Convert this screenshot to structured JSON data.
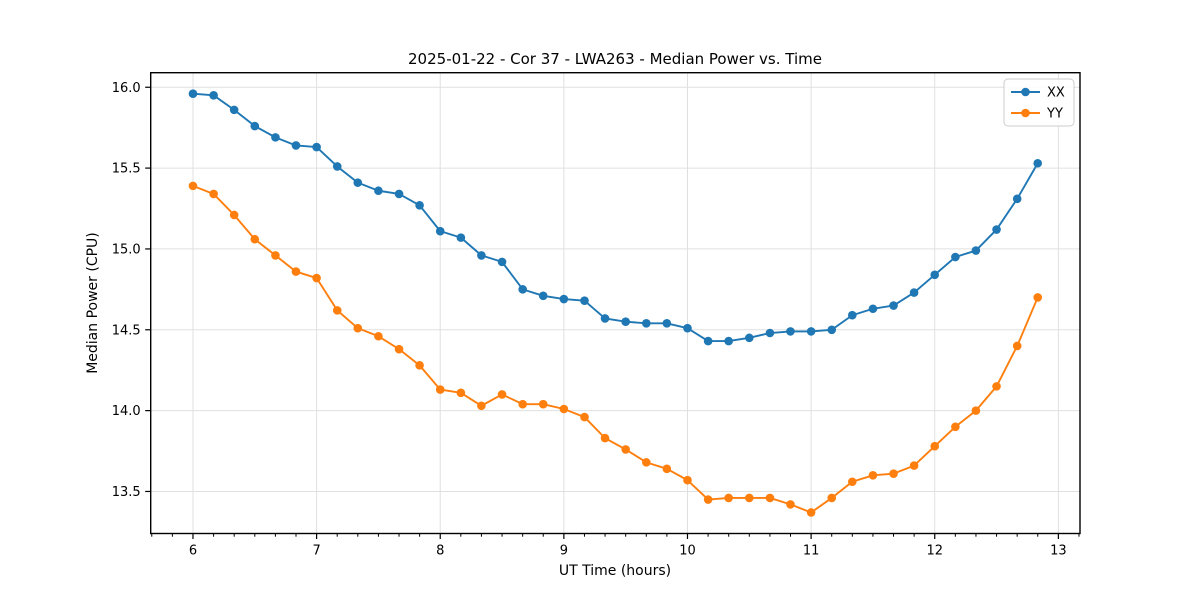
{
  "chart_data": {
    "type": "line",
    "title": "2025-01-22 - Cor 37 - LWA263 - Median Power vs. Time",
    "xlabel": "UT Time (hours)",
    "ylabel": "Median Power (CPU)",
    "xlim": [
      5.658,
      13.175
    ],
    "ylim": [
      13.24,
      16.09
    ],
    "xticks": [
      6,
      7,
      8,
      9,
      10,
      11,
      12,
      13
    ],
    "yticks": [
      13.5,
      14.0,
      14.5,
      15.0,
      15.5,
      16.0
    ],
    "grid": true,
    "grid_color": "#e0e0e0",
    "spine_color": "#000000",
    "legend_position": "upper right",
    "x": [
      6.0,
      6.167,
      6.333,
      6.5,
      6.667,
      6.833,
      7.0,
      7.167,
      7.333,
      7.5,
      7.667,
      7.833,
      8.0,
      8.167,
      8.333,
      8.5,
      8.667,
      8.833,
      9.0,
      9.167,
      9.333,
      9.5,
      9.667,
      9.833,
      10.0,
      10.167,
      10.333,
      10.5,
      10.667,
      10.833,
      11.0,
      11.167,
      11.333,
      11.5,
      11.667,
      11.833,
      12.0,
      12.167,
      12.333,
      12.5,
      12.667,
      12.833
    ],
    "series": [
      {
        "name": "XX",
        "color": "#1f77b4",
        "values": [
          15.96,
          15.95,
          15.86,
          15.76,
          15.69,
          15.64,
          15.63,
          15.51,
          15.41,
          15.36,
          15.34,
          15.27,
          15.11,
          15.07,
          14.96,
          14.92,
          14.75,
          14.71,
          14.69,
          14.68,
          14.57,
          14.55,
          14.54,
          14.54,
          14.51,
          14.43,
          14.43,
          14.45,
          14.48,
          14.49,
          14.49,
          14.5,
          14.59,
          14.63,
          14.65,
          14.73,
          14.84,
          14.95,
          14.99,
          15.12,
          15.31,
          15.53
        ]
      },
      {
        "name": "YY",
        "color": "#ff7f0e",
        "values": [
          15.39,
          15.34,
          15.21,
          15.06,
          14.96,
          14.86,
          14.82,
          14.62,
          14.51,
          14.46,
          14.38,
          14.28,
          14.13,
          14.11,
          14.03,
          14.1,
          14.04,
          14.04,
          14.01,
          13.96,
          13.83,
          13.76,
          13.68,
          13.64,
          13.57,
          13.45,
          13.46,
          13.46,
          13.46,
          13.42,
          13.37,
          13.46,
          13.56,
          13.6,
          13.61,
          13.66,
          13.78,
          13.9,
          14.0,
          14.15,
          14.4,
          14.7
        ]
      }
    ]
  }
}
